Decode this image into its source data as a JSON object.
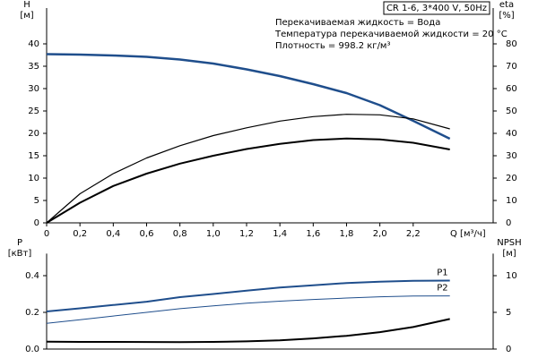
{
  "chart_data": [
    {
      "type": "line",
      "title": "CR 1-6, 3*400 V, 50Hz",
      "annotations": [
        "Перекачиваемая жидкость = Вода",
        "Температура перекачиваемой жидкости = 20 °C",
        "Плотность = 998.2 кг/м³"
      ],
      "ylabel": [
        "H",
        "[м]"
      ],
      "y2label": [
        "eta",
        "[%]"
      ],
      "xlabel": "Q [м³/ч]",
      "x": [
        0,
        0.2,
        0.4,
        0.6,
        0.8,
        1.0,
        1.2,
        1.4,
        1.6,
        1.8,
        2.0,
        2.2,
        2.42
      ],
      "xlim": [
        0,
        2.68
      ],
      "xticks": [
        0,
        {
          "value": 0.2,
          "label": "0,2"
        },
        {
          "value": 0.4,
          "label": "0,4"
        },
        {
          "value": 0.6,
          "label": "0,6"
        },
        {
          "value": 0.8,
          "label": "0,8"
        },
        {
          "value": 1.0,
          "label": "1,0"
        },
        {
          "value": 1.2,
          "label": "1,2"
        },
        {
          "value": 1.4,
          "label": "1,4"
        },
        {
          "value": 1.6,
          "label": "1,6"
        },
        {
          "value": 1.8,
          "label": "1,8"
        },
        {
          "value": 2.0,
          "label": "2,0"
        },
        {
          "value": 2.2,
          "label": "2,2"
        }
      ],
      "ylim": [
        0,
        48
      ],
      "yticks": [
        0,
        5,
        10,
        15,
        20,
        25,
        30,
        35,
        40
      ],
      "y2lim": [
        0,
        96
      ],
      "y2ticks": [
        0,
        10,
        20,
        30,
        40,
        50,
        60,
        70,
        80
      ],
      "series": [
        {
          "color": "#1f4e8c",
          "linewidth": 2.5,
          "values": [
            37.7,
            37.6,
            37.4,
            37.1,
            36.5,
            35.6,
            34.3,
            32.8,
            31.0,
            29.0,
            26.3,
            22.8,
            18.8
          ]
        },
        {
          "color": "#000000",
          "linewidth": 1.2,
          "axis": "y2",
          "values": [
            0,
            13,
            22,
            29,
            34.5,
            39,
            42.5,
            45.5,
            47.5,
            48.5,
            48.3,
            46.5,
            42
          ]
        },
        {
          "color": "#000000",
          "linewidth": 2,
          "axis": "y2",
          "values": [
            0,
            9,
            16.5,
            22,
            26.5,
            30,
            33,
            35.3,
            37,
            37.7,
            37.3,
            35.8,
            32.8
          ]
        }
      ]
    },
    {
      "type": "line",
      "ylabel": [
        "P",
        "[кВт]"
      ],
      "y2label": [
        "NPSH",
        "[м]"
      ],
      "x": [
        0,
        0.2,
        0.4,
        0.6,
        0.8,
        1.0,
        1.2,
        1.4,
        1.6,
        1.8,
        2.0,
        2.2,
        2.42
      ],
      "xlim": [
        0,
        2.68
      ],
      "ylim": [
        0,
        0.52
      ],
      "yticks": [
        {
          "value": 0,
          "label": "0.0"
        },
        0.2,
        0.4
      ],
      "y2lim": [
        0,
        13
      ],
      "y2ticks": [
        0,
        5,
        10
      ],
      "series": [
        {
          "name": "P1",
          "color": "#1f4e8c",
          "linewidth": 2,
          "values": [
            0.205,
            0.222,
            0.24,
            0.258,
            0.283,
            0.3,
            0.318,
            0.335,
            0.348,
            0.36,
            0.367,
            0.372,
            0.373
          ]
        },
        {
          "name": "P2",
          "color": "#1f4e8c",
          "linewidth": 1,
          "values": [
            0.14,
            0.16,
            0.18,
            0.2,
            0.22,
            0.235,
            0.25,
            0.261,
            0.27,
            0.278,
            0.285,
            0.289,
            0.29
          ]
        },
        {
          "color": "#000000",
          "linewidth": 2,
          "axis": "y2",
          "values": [
            1.0,
            0.98,
            0.97,
            0.96,
            0.95,
            0.97,
            1.05,
            1.2,
            1.45,
            1.8,
            2.3,
            3.0,
            4.1
          ]
        }
      ]
    }
  ]
}
